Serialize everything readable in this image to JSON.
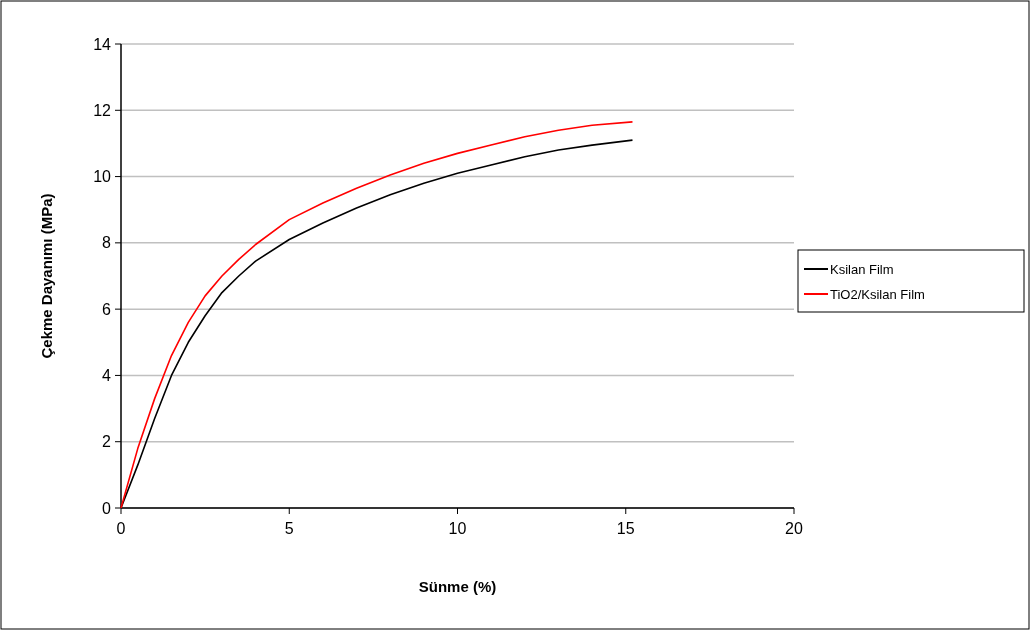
{
  "chart_data": {
    "type": "line",
    "xlabel": "Sünme (%)",
    "ylabel": "Çekme Dayanımı (MPa)",
    "xlim": [
      0,
      20
    ],
    "xticks": [
      0,
      5,
      10,
      15,
      20
    ],
    "ylim": [
      0,
      14
    ],
    "yticks": [
      0,
      2,
      4,
      6,
      8,
      10,
      12,
      14
    ],
    "grid": "y",
    "legend": "right",
    "marker": "none",
    "line_style": "solid",
    "series": [
      {
        "name": "Ksilan Film",
        "color": "#000000",
        "x": [
          0,
          0.5,
          1,
          1.5,
          2,
          2.5,
          3,
          3.5,
          4,
          5,
          6,
          7,
          8,
          9,
          10,
          11,
          12,
          13,
          14,
          15.2
        ],
        "values": [
          0,
          1.3,
          2.7,
          4,
          5,
          5.8,
          6.5,
          7,
          7.45,
          8.1,
          8.6,
          9.05,
          9.45,
          9.8,
          10.1,
          10.35,
          10.6,
          10.8,
          10.95,
          11.1
        ]
      },
      {
        "name": "TiO2/Ksilan Film",
        "color": "#ff0000",
        "x": [
          0,
          0.5,
          1,
          1.5,
          2,
          2.5,
          3,
          3.5,
          4,
          5,
          6,
          7,
          8,
          9,
          10,
          11,
          12,
          13,
          14,
          15.2
        ],
        "values": [
          0,
          1.8,
          3.3,
          4.6,
          5.6,
          6.4,
          7,
          7.5,
          7.95,
          8.7,
          9.2,
          9.65,
          10.05,
          10.4,
          10.7,
          10.95,
          11.2,
          11.4,
          11.55,
          11.65
        ]
      }
    ]
  }
}
